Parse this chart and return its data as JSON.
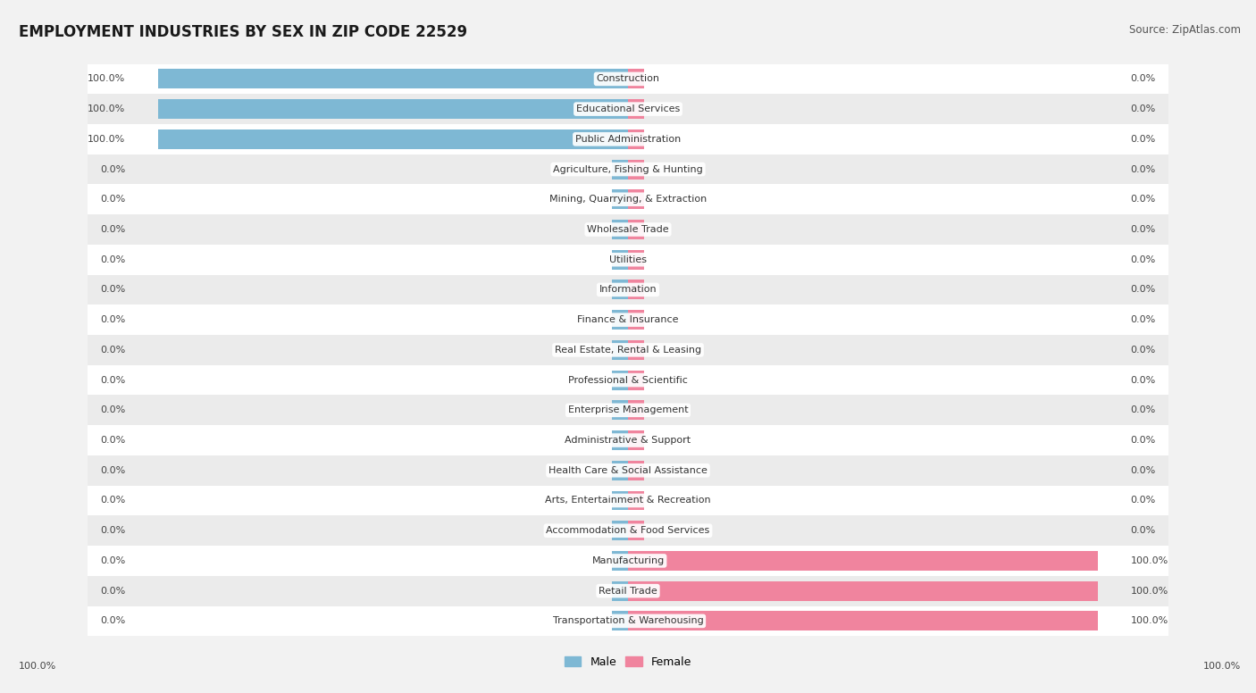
{
  "title": "EMPLOYMENT INDUSTRIES BY SEX IN ZIP CODE 22529",
  "source": "Source: ZipAtlas.com",
  "categories": [
    "Construction",
    "Educational Services",
    "Public Administration",
    "Agriculture, Fishing & Hunting",
    "Mining, Quarrying, & Extraction",
    "Wholesale Trade",
    "Utilities",
    "Information",
    "Finance & Insurance",
    "Real Estate, Rental & Leasing",
    "Professional & Scientific",
    "Enterprise Management",
    "Administrative & Support",
    "Health Care & Social Assistance",
    "Arts, Entertainment & Recreation",
    "Accommodation & Food Services",
    "Manufacturing",
    "Retail Trade",
    "Transportation & Warehousing"
  ],
  "male_values": [
    100.0,
    100.0,
    100.0,
    0.0,
    0.0,
    0.0,
    0.0,
    0.0,
    0.0,
    0.0,
    0.0,
    0.0,
    0.0,
    0.0,
    0.0,
    0.0,
    0.0,
    0.0,
    0.0
  ],
  "female_values": [
    0.0,
    0.0,
    0.0,
    0.0,
    0.0,
    0.0,
    0.0,
    0.0,
    0.0,
    0.0,
    0.0,
    0.0,
    0.0,
    0.0,
    0.0,
    0.0,
    100.0,
    100.0,
    100.0
  ],
  "male_color": "#7eb8d4",
  "female_color": "#f0849e",
  "bg_color": "#f2f2f2",
  "row_color_even": "#ffffff",
  "row_color_odd": "#ebebeb",
  "title_fontsize": 12,
  "source_fontsize": 8.5,
  "label_fontsize": 8,
  "category_fontsize": 8,
  "bar_height": 0.65,
  "stub_size": 3.5
}
